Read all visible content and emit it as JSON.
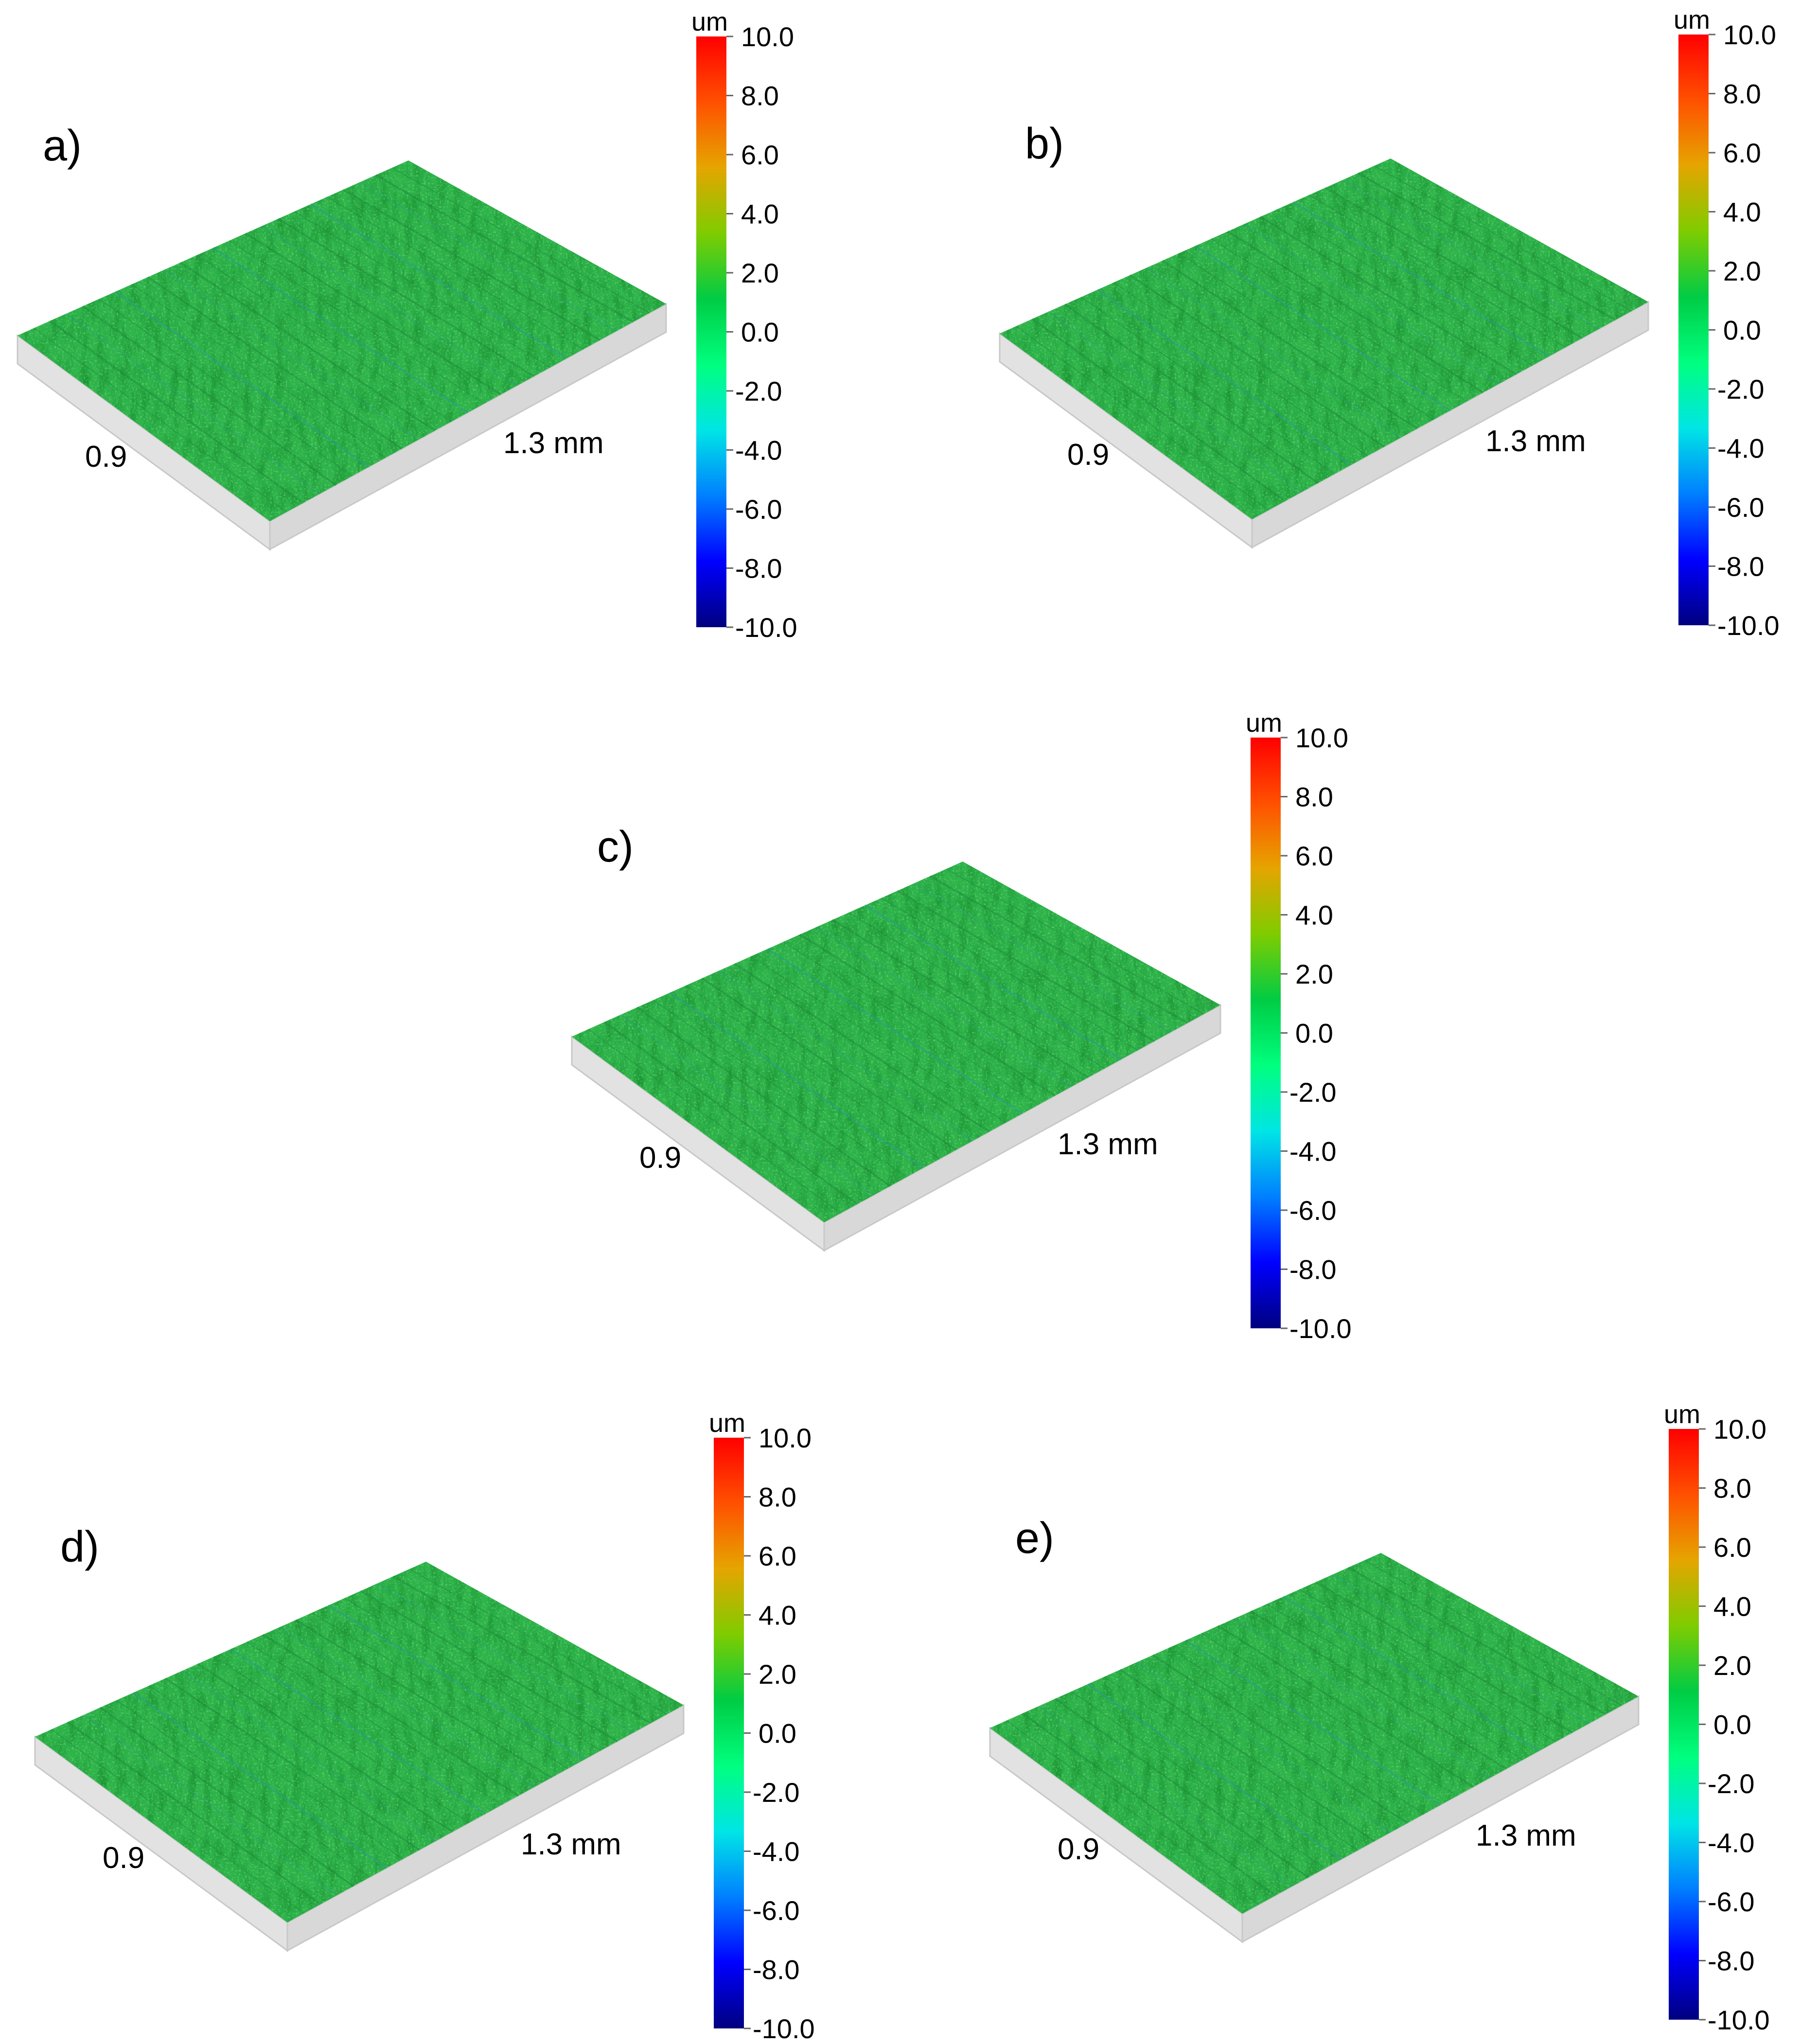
{
  "colors": {
    "colormap": [
      "#00007f",
      "#0000ff",
      "#007fff",
      "#00e5e5",
      "#00ff7f",
      "#00cc44",
      "#7fcc00",
      "#e5a500",
      "#ff5000",
      "#ff0000"
    ],
    "surface_base": "#2db34a",
    "surface_dark": "#1d8a3a",
    "surface_light": "#52d14f",
    "surface_blue": "#2a9a9a",
    "edge": "#c8c8c8"
  },
  "chart_data": [
    {
      "type": "heatmap",
      "label": "a)",
      "x_dim_label": "0.9",
      "y_dim_label": "1.3 mm",
      "colorbar": {
        "unit": "um",
        "range": [
          -10.0,
          10.0
        ],
        "ticks": [
          "10.0",
          "8.0",
          "6.0",
          "4.0",
          "2.0",
          "0.0",
          "-2.0",
          "-4.0",
          "-6.0",
          "-8.0",
          "-10.0"
        ]
      }
    },
    {
      "type": "heatmap",
      "label": "b)",
      "x_dim_label": "0.9",
      "y_dim_label": "1.3 mm",
      "colorbar": {
        "unit": "um",
        "range": [
          -10.0,
          10.0
        ],
        "ticks": [
          "10.0",
          "8.0",
          "6.0",
          "4.0",
          "2.0",
          "0.0",
          "-2.0",
          "-4.0",
          "-6.0",
          "-8.0",
          "-10.0"
        ]
      }
    },
    {
      "type": "heatmap",
      "label": "c)",
      "x_dim_label": "0.9",
      "y_dim_label": "1.3 mm",
      "colorbar": {
        "unit": "um",
        "range": [
          -10.0,
          10.0
        ],
        "ticks": [
          "10.0",
          "8.0",
          "6.0",
          "4.0",
          "2.0",
          "0.0",
          "-2.0",
          "-4.0",
          "-6.0",
          "-8.0",
          "-10.0"
        ]
      }
    },
    {
      "type": "heatmap",
      "label": "d)",
      "x_dim_label": "0.9",
      "y_dim_label": "1.3 mm",
      "colorbar": {
        "unit": "um",
        "range": [
          -10.0,
          10.0
        ],
        "ticks": [
          "10.0",
          "8.0",
          "6.0",
          "4.0",
          "2.0",
          "0.0",
          "-2.0",
          "-4.0",
          "-6.0",
          "-8.0",
          "-10.0"
        ]
      }
    },
    {
      "type": "heatmap",
      "label": "e)",
      "x_dim_label": "0.9",
      "y_dim_label": "1.3 mm",
      "colorbar": {
        "unit": "um",
        "range": [
          -10.0,
          10.0
        ],
        "ticks": [
          "10.0",
          "8.0",
          "6.0",
          "4.0",
          "2.0",
          "0.0",
          "-2.0",
          "-4.0",
          "-6.0",
          "-8.0",
          "-10.0"
        ]
      }
    }
  ]
}
